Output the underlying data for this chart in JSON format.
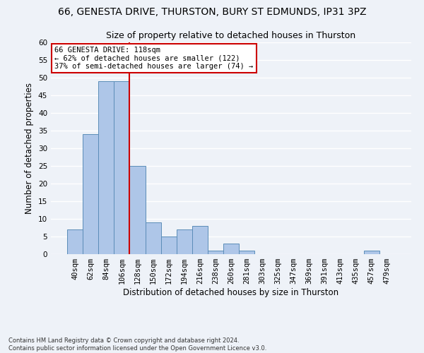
{
  "title_line1": "66, GENESTA DRIVE, THURSTON, BURY ST EDMUNDS, IP31 3PZ",
  "title_line2": "Size of property relative to detached houses in Thurston",
  "xlabel": "Distribution of detached houses by size in Thurston",
  "ylabel": "Number of detached properties",
  "footnote": "Contains HM Land Registry data © Crown copyright and database right 2024.\nContains public sector information licensed under the Open Government Licence v3.0.",
  "bar_labels": [
    "40sqm",
    "62sqm",
    "84sqm",
    "106sqm",
    "128sqm",
    "150sqm",
    "172sqm",
    "194sqm",
    "216sqm",
    "238sqm",
    "260sqm",
    "281sqm",
    "303sqm",
    "325sqm",
    "347sqm",
    "369sqm",
    "391sqm",
    "413sqm",
    "435sqm",
    "457sqm",
    "479sqm"
  ],
  "bar_values": [
    7,
    34,
    49,
    49,
    25,
    9,
    5,
    7,
    8,
    1,
    3,
    1,
    0,
    0,
    0,
    0,
    0,
    0,
    0,
    1,
    0
  ],
  "bar_color": "#aec6e8",
  "bar_edge_color": "#5b8db8",
  "vline_pos": 3.5,
  "vline_color": "#cc0000",
  "annotation_text": "66 GENESTA DRIVE: 118sqm\n← 62% of detached houses are smaller (122)\n37% of semi-detached houses are larger (74) →",
  "annotation_box_color": "white",
  "annotation_box_edge_color": "#cc0000",
  "ylim": [
    0,
    60
  ],
  "yticks": [
    0,
    5,
    10,
    15,
    20,
    25,
    30,
    35,
    40,
    45,
    50,
    55,
    60
  ],
  "background_color": "#eef2f8",
  "axes_bg_color": "#eef2f8",
  "grid_color": "white",
  "title_fontsize": 10,
  "subtitle_fontsize": 9,
  "axis_label_fontsize": 8.5,
  "tick_fontsize": 7.5,
  "annotation_fontsize": 7.5,
  "footnote_fontsize": 6
}
